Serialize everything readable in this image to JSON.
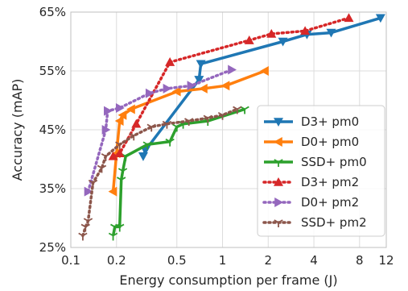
{
  "chart_data": {
    "type": "line",
    "xlabel": "Energy consumption per frame (J)",
    "ylabel": "Accuracy (mAP)",
    "xscale": "log",
    "xlim": [
      0.1,
      12
    ],
    "ylim": [
      25,
      65
    ],
    "xticks": [
      {
        "value": 0.1,
        "label": "0.1"
      },
      {
        "value": 0.2,
        "label": "0.2"
      },
      {
        "value": 0.5,
        "label": "0.5"
      },
      {
        "value": 1,
        "label": "1"
      },
      {
        "value": 2,
        "label": "2"
      },
      {
        "value": 4,
        "label": "4"
      },
      {
        "value": 8,
        "label": "8"
      },
      {
        "value": 12,
        "label": "12"
      }
    ],
    "yticks": [
      {
        "value": 25,
        "label": "25%"
      },
      {
        "value": 35,
        "label": "35%"
      },
      {
        "value": 45,
        "label": "45%"
      },
      {
        "value": 55,
        "label": "55%"
      },
      {
        "value": 65,
        "label": "65%"
      }
    ],
    "grid": true,
    "legend_position": "bottom-right",
    "series": [
      {
        "name": "D3+ pm0",
        "color": "#1f77b4",
        "marker": "triangle-down",
        "style": "solid",
        "x": [
          0.3,
          0.31,
          0.7,
          0.72,
          2.5,
          3.6,
          5.2,
          11.0
        ],
        "y": [
          40.5,
          41.5,
          53.5,
          56.2,
          60.0,
          61.2,
          61.5,
          64.0
        ]
      },
      {
        "name": "D0+ pm0",
        "color": "#ff7f0e",
        "marker": "triangle-left",
        "style": "solid",
        "x": [
          0.19,
          0.2,
          0.21,
          0.22,
          0.25,
          0.5,
          0.75,
          1.05,
          1.9
        ],
        "y": [
          34.5,
          41.0,
          46.5,
          47.5,
          48.5,
          51.5,
          52.0,
          52.5,
          55.0
        ]
      },
      {
        "name": "SSD+ pm0",
        "color": "#2ca02c",
        "marker": "tri-down",
        "style": "solid",
        "x": [
          0.19,
          0.195,
          0.21,
          0.215,
          0.22,
          0.23,
          0.32,
          0.45,
          0.5,
          0.55,
          0.8,
          1.4
        ],
        "y": [
          27.0,
          28.5,
          28.5,
          36.5,
          38.0,
          40.5,
          42.5,
          43.0,
          45.5,
          46.0,
          46.5,
          48.5
        ]
      },
      {
        "name": "D3+ pm2",
        "color": "#d62728",
        "marker": "triangle-up",
        "style": "dotted",
        "x": [
          0.19,
          0.21,
          0.27,
          0.45,
          1.5,
          2.1,
          3.5,
          6.8
        ],
        "y": [
          40.5,
          41.0,
          46.0,
          56.5,
          60.2,
          61.3,
          61.8,
          64.0
        ]
      },
      {
        "name": "D0+ pm2",
        "color": "#9467bd",
        "marker": "triangle-right",
        "style": "dotted",
        "x": [
          0.13,
          0.17,
          0.175,
          0.21,
          0.33,
          0.43,
          0.62,
          1.15
        ],
        "y": [
          34.5,
          45.0,
          48.2,
          48.7,
          51.2,
          52.0,
          52.5,
          55.2
        ]
      },
      {
        "name": "SSD+ pm2",
        "color": "#8c564b",
        "marker": "tri-down",
        "style": "dotted",
        "x": [
          0.12,
          0.125,
          0.13,
          0.14,
          0.16,
          0.17,
          0.21,
          0.26,
          0.34,
          0.43,
          0.6,
          0.8,
          1.0,
          1.25
        ],
        "y": [
          27.0,
          28.5,
          29.5,
          36.0,
          38.5,
          40.5,
          42.5,
          44.0,
          45.5,
          46.0,
          46.5,
          47.0,
          47.5,
          48.5
        ]
      }
    ]
  }
}
